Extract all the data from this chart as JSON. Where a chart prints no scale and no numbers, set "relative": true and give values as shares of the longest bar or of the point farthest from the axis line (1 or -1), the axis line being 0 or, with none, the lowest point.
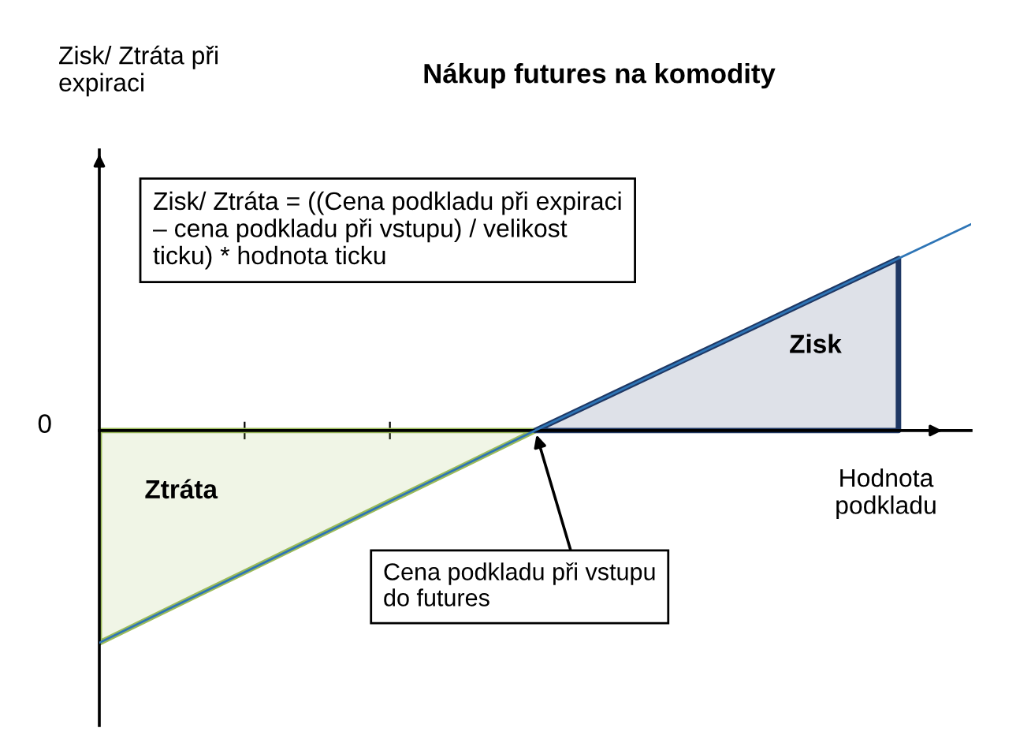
{
  "chart_data": {
    "type": "area",
    "relative": true,
    "title": "Nákup futures na komodity",
    "xlabel": "Hodnota podkladu",
    "categories": [
      null,
      null,
      null,
      null,
      null,
      null,
      null,
      null,
      null,
      null,
      null,
      null,
      null
    ],
    "series": [
      {
        "name": "Ztráta",
        "color": "#9bbb59",
        "values": [
          -1,
          -0.833,
          -0.667,
          -0.5,
          -0.333,
          -0.167,
          0,
          null,
          null,
          null,
          null,
          null,
          null
        ]
      },
      {
        "name": "Zisk",
        "color": "#1f3864",
        "values": [
          null,
          null,
          null,
          null,
          null,
          null,
          0,
          0.162,
          0.324,
          0.486,
          0.648,
          0.81,
          null
        ]
      },
      {
        "type": "line",
        "color": "#2e75b6",
        "values": [
          -1,
          -0.833,
          -0.667,
          -0.5,
          -0.333,
          -0.167,
          0,
          0.162,
          0.324,
          0.486,
          0.648,
          0.81,
          0.972
        ]
      }
    ],
    "annotations": [
      "Zisk/ Ztráta při expiraci",
      "Zisk/ Ztráta = ((Cena podkladu při expiraci – cena podkladu při vstupu) / velikost ticku) * hodnota ticku",
      "0",
      "Cena podkladu při vstupu do futures"
    ]
  }
}
